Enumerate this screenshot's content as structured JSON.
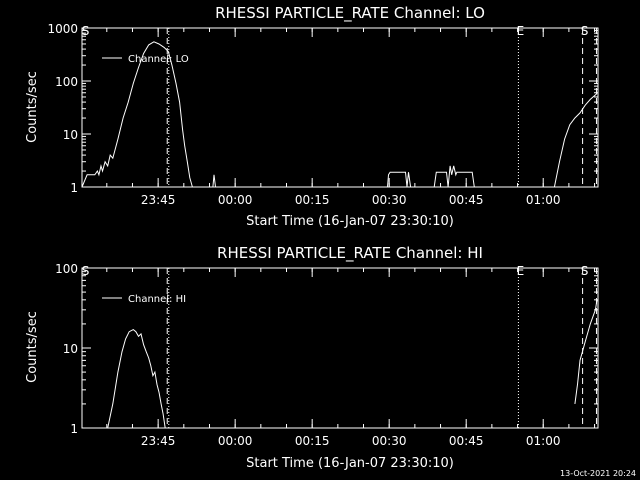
{
  "footer_timestamp": "13-Oct-2021 20:24",
  "chart_data": [
    {
      "type": "line",
      "title": "RHESSI PARTICLE_RATE Channel: LO",
      "xlabel": "Start Time (16-Jan-07 23:30:10)",
      "ylabel": "Counts/sec",
      "y_scale": "log",
      "ylim": [
        1,
        1000
      ],
      "y_ticks": [
        {
          "v": 1,
          "label": "1"
        },
        {
          "v": 10,
          "label": "10"
        },
        {
          "v": 100,
          "label": "100"
        },
        {
          "v": 1000,
          "label": "1000"
        }
      ],
      "x_unit": "minutes after 23:30:10",
      "xlim": [
        0,
        100.5
      ],
      "x_ticks": [
        {
          "v": 14.83,
          "label": "23:45"
        },
        {
          "v": 29.83,
          "label": "00:00"
        },
        {
          "v": 44.83,
          "label": "00:15"
        },
        {
          "v": 59.83,
          "label": "00:30"
        },
        {
          "v": 74.83,
          "label": "00:45"
        },
        {
          "v": 89.83,
          "label": "01:00"
        }
      ],
      "legend": {
        "placement": "top-left",
        "label": "Channel: LO"
      },
      "markers": [
        {
          "x": 0.3,
          "style": "none",
          "label": "S"
        },
        {
          "x": 16.6,
          "style": "dashed",
          "label": ""
        },
        {
          "x": 16.9,
          "style": "dotted",
          "label": ""
        },
        {
          "x": 85.0,
          "style": "dotted",
          "label": "E"
        },
        {
          "x": 97.5,
          "style": "dashed",
          "label": "S"
        },
        {
          "x": 100.2,
          "style": "dashed",
          "label": ""
        }
      ],
      "series": [
        {
          "name": "Channel: LO",
          "segments": [
            [
              [
                0,
                1
              ],
              [
                1,
                1.7
              ],
              [
                2.5,
                1.7
              ],
              [
                3,
                2
              ],
              [
                3.3,
                1.7
              ],
              [
                3.7,
                2.5
              ],
              [
                4,
                2
              ],
              [
                4.5,
                3
              ],
              [
                5,
                2.5
              ],
              [
                5.5,
                4
              ],
              [
                6,
                3.5
              ],
              [
                7,
                8
              ],
              [
                8,
                20
              ],
              [
                9,
                40
              ],
              [
                10,
                90
              ],
              [
                11,
                180
              ],
              [
                12,
                330
              ],
              [
                13,
                480
              ],
              [
                14,
                550
              ],
              [
                15,
                500
              ],
              [
                16,
                430
              ],
              [
                16.8,
                360
              ],
              [
                17.5,
                200
              ],
              [
                18.3,
                90
              ],
              [
                19,
                40
              ],
              [
                19.6,
                12
              ],
              [
                20,
                6
              ],
              [
                20.5,
                3
              ],
              [
                21,
                1.5
              ],
              [
                21.5,
                1
              ]
            ],
            [
              [
                25.5,
                1
              ],
              [
                25.7,
                1.7
              ],
              [
                26,
                1
              ]
            ],
            [
              [
                59.5,
                1
              ],
              [
                59.7,
                1.7
              ],
              [
                60,
                1.9
              ],
              [
                62,
                1.9
              ],
              [
                63,
                1.9
              ],
              [
                63.3,
                1
              ],
              [
                63.6,
                1.9
              ],
              [
                64,
                1
              ]
            ],
            [
              [
                68.6,
                1
              ],
              [
                69,
                1.9
              ],
              [
                71,
                1.9
              ],
              [
                71.3,
                1
              ],
              [
                71.7,
                2.5
              ],
              [
                72,
                1.7
              ],
              [
                72.4,
                2.5
              ],
              [
                72.8,
                1.7
              ],
              [
                73,
                1.9
              ],
              [
                75,
                1.9
              ],
              [
                76,
                1.9
              ],
              [
                76.4,
                1
              ]
            ],
            [
              [
                92,
                1
              ],
              [
                93,
                3
              ],
              [
                94,
                8
              ],
              [
                95,
                15
              ],
              [
                96,
                20
              ],
              [
                97,
                25
              ],
              [
                98,
                35
              ],
              [
                99,
                45
              ],
              [
                100.3,
                58
              ]
            ]
          ]
        }
      ]
    },
    {
      "type": "line",
      "title": "RHESSI PARTICLE_RATE Channel: HI",
      "xlabel": "Start Time (16-Jan-07 23:30:10)",
      "ylabel": "Counts/sec",
      "y_scale": "log",
      "ylim": [
        1,
        100
      ],
      "y_ticks": [
        {
          "v": 1,
          "label": "1"
        },
        {
          "v": 10,
          "label": "10"
        },
        {
          "v": 100,
          "label": "100"
        }
      ],
      "x_unit": "minutes after 23:30:10",
      "xlim": [
        0,
        100.5
      ],
      "x_ticks": [
        {
          "v": 14.83,
          "label": "23:45"
        },
        {
          "v": 29.83,
          "label": "00:00"
        },
        {
          "v": 44.83,
          "label": "00:15"
        },
        {
          "v": 59.83,
          "label": "00:30"
        },
        {
          "v": 74.83,
          "label": "00:45"
        },
        {
          "v": 89.83,
          "label": "01:00"
        }
      ],
      "legend": {
        "placement": "top-left",
        "label": "Channel: HI"
      },
      "markers": [
        {
          "x": 0.3,
          "style": "none",
          "label": "S"
        },
        {
          "x": 16.6,
          "style": "dashed",
          "label": ""
        },
        {
          "x": 16.9,
          "style": "dotted",
          "label": ""
        },
        {
          "x": 85.0,
          "style": "dotted",
          "label": "E"
        },
        {
          "x": 97.5,
          "style": "dashed",
          "label": "S"
        },
        {
          "x": 100.2,
          "style": "dashed",
          "label": ""
        }
      ],
      "series": [
        {
          "name": "Channel: HI",
          "segments": [
            [
              [
                5,
                1
              ],
              [
                6,
                2
              ],
              [
                7,
                5
              ],
              [
                7.8,
                9
              ],
              [
                8.5,
                13
              ],
              [
                9.2,
                16
              ],
              [
                10,
                17
              ],
              [
                10.5,
                16
              ],
              [
                11,
                14
              ],
              [
                11.5,
                15
              ],
              [
                12,
                11
              ],
              [
                12.5,
                9
              ],
              [
                13,
                7.5
              ],
              [
                13.4,
                6
              ],
              [
                13.8,
                4.5
              ],
              [
                14.2,
                5
              ],
              [
                14.6,
                3.5
              ],
              [
                15,
                2.8
              ],
              [
                15.4,
                2
              ],
              [
                15.8,
                1.5
              ],
              [
                16.2,
                1
              ]
            ],
            [
              [
                96,
                2
              ],
              [
                96.5,
                3.5
              ],
              [
                97,
                7
              ],
              [
                98,
                12
              ],
              [
                99,
                20
              ],
              [
                100,
                30
              ],
              [
                100.3,
                40
              ]
            ]
          ]
        }
      ]
    }
  ]
}
